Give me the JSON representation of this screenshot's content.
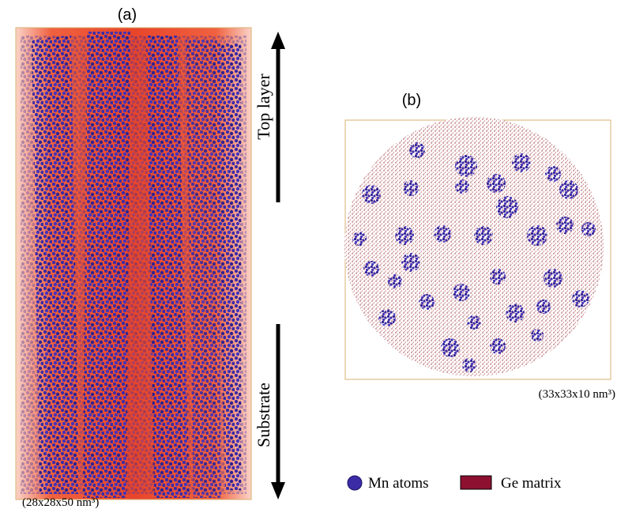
{
  "panel_a": {
    "label": "(a)",
    "top_label": "Top layer",
    "bottom_label": "Substrate",
    "dimensions": "(28x28x50 nm³)"
  },
  "panel_b": {
    "label": "(b)",
    "dimensions": "(33x33x10 nm³)"
  },
  "legend": {
    "items": [
      {
        "label": "Mn atoms"
      },
      {
        "label": "Ge matrix"
      }
    ]
  }
}
